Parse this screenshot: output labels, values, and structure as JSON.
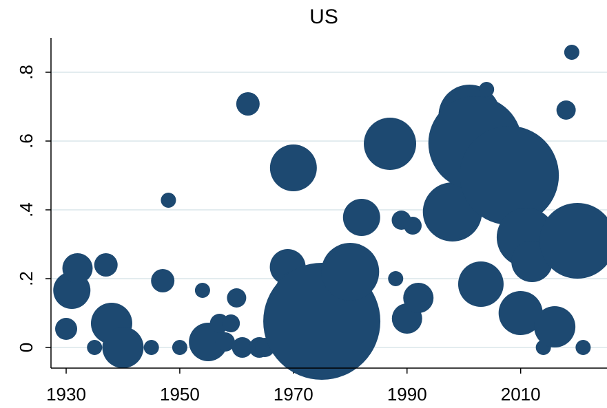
{
  "chart_data": {
    "type": "scatter",
    "title": "US",
    "series": [
      {
        "name": "US",
        "color": "#1d4971",
        "x": [
          1930,
          1931,
          1932,
          1935,
          1937,
          1938,
          1940,
          1945,
          1947,
          1948,
          1950,
          1954,
          1955,
          1957,
          1958,
          1959,
          1960,
          1961,
          1962,
          1964,
          1965,
          1969,
          1970,
          1970,
          1974,
          1975,
          1980,
          1982,
          1985,
          1987,
          1988,
          1989,
          1991,
          1990,
          1992,
          1998,
          2001,
          2002,
          2003,
          2004,
          2008,
          2010,
          2011,
          2012,
          2014,
          2016,
          2018,
          2019,
          2020,
          2021
        ],
        "values": [
          0.054,
          0.166,
          0.23,
          0,
          0.24,
          0.07,
          0,
          0,
          0.194,
          0.428,
          0,
          0.166,
          0.016,
          0.07,
          0.016,
          0.07,
          0.144,
          0,
          0.708,
          0,
          0,
          0.234,
          0.522,
          0.17,
          0.17,
          0.076,
          0.22,
          0.378,
          0.574,
          0.592,
          0.2,
          0.37,
          0.354,
          0.084,
          0.144,
          0.394,
          0.674,
          0.594,
          0.184,
          0.75,
          0.5,
          0.1,
          0.32,
          0.25,
          0,
          0.06,
          0.69,
          0.858,
          0.31,
          0
        ],
        "sizes": [
          16,
          27,
          22,
          11,
          17,
          30,
          30,
          11,
          17,
          11,
          11,
          11,
          28,
          14,
          14,
          13,
          14,
          15,
          17,
          15,
          14,
          26,
          34,
          25,
          35,
          85,
          42,
          27,
          12,
          38,
          11,
          14,
          13,
          22,
          22,
          43,
          45,
          68,
          33,
          11,
          72,
          32,
          43,
          30,
          11,
          30,
          14,
          11,
          55,
          11
        ]
      }
    ],
    "xlim": [
      1927.33,
      2025.2
    ],
    "ylim": [
      -0.06,
      0.9
    ],
    "xticks": [
      1930,
      1950,
      1970,
      1990,
      2010
    ],
    "yticks": [
      0,
      {
        "value": 0.2,
        "label": ".2"
      },
      {
        "value": 0.4,
        "label": ".4"
      },
      {
        "value": 0.6,
        "label": ".6"
      },
      {
        "value": 0.8,
        "label": ".8"
      }
    ],
    "grid": true
  }
}
